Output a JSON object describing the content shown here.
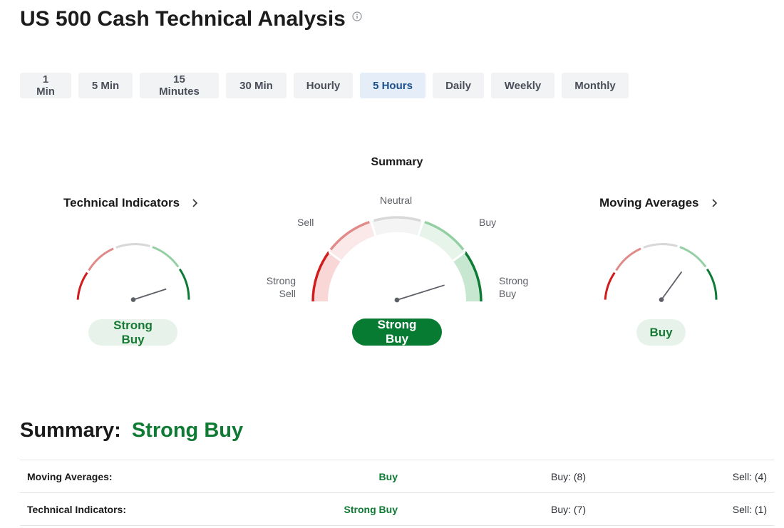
{
  "header": {
    "title": "US 500 Cash Technical Analysis",
    "info_icon": "info-circle-icon"
  },
  "tabs": [
    {
      "label": "1 Min"
    },
    {
      "label": "5 Min"
    },
    {
      "label": "15 Minutes"
    },
    {
      "label": "30 Min"
    },
    {
      "label": "Hourly"
    },
    {
      "label": "5 Hours",
      "active": true
    },
    {
      "label": "Daily"
    },
    {
      "label": "Weekly"
    },
    {
      "label": "Monthly"
    }
  ],
  "summary_gauge": {
    "heading": "Summary",
    "labels": {
      "strong_sell": "Strong\nSell",
      "sell": "Sell",
      "neutral": "Neutral",
      "buy": "Buy",
      "strong_buy": "Strong\nBuy"
    },
    "result": "Strong Buy"
  },
  "technical_indicators_gauge": {
    "title": "Technical Indicators",
    "result": "Strong Buy"
  },
  "moving_averages_gauge": {
    "title": "Moving Averages",
    "result": "Buy"
  },
  "summary": {
    "label": "Summary:",
    "value": "Strong Buy",
    "rows": [
      {
        "name": "Moving Averages:",
        "signal": "Buy",
        "buy": "Buy: (8)",
        "sell": "Sell: (4)"
      },
      {
        "name": "Technical Indicators:",
        "signal": "Strong Buy",
        "buy": "Buy: (7)",
        "sell": "Sell: (1)"
      }
    ]
  },
  "colors": {
    "strong_sell": "#d11d1d",
    "sell": "#e08a8a",
    "neutral": "#d8d8d8",
    "buy": "#94cfa4",
    "strong_buy": "#0d7a35",
    "active_tab_bg": "#e5eef8",
    "active_tab_text": "#1b4f8a",
    "buy_text": "#0e7a33"
  }
}
